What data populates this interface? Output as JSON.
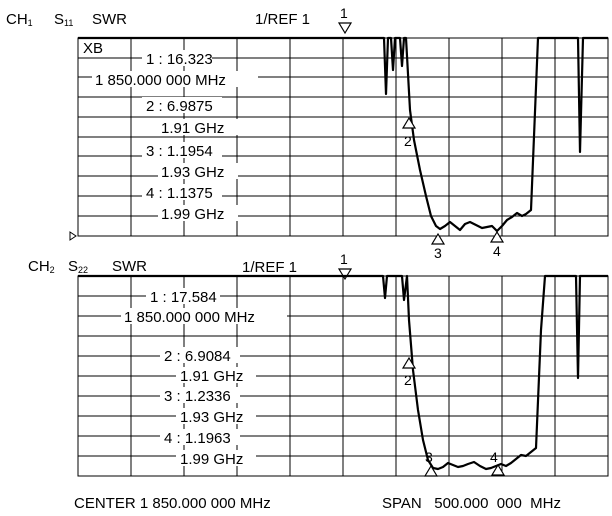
{
  "channels": [
    {
      "channel": "CH",
      "channel_num": "1",
      "param": "S",
      "param_sub": "11",
      "format": "SWR",
      "scale": "1/REF 1",
      "ref_marker": "1",
      "box_label": "XB",
      "markers": [
        {
          "label": "1 : 16.323",
          "freq": "1 850.000 000 MHz"
        },
        {
          "label": "2 : 6.9875",
          "freq": "1.91 GHz"
        },
        {
          "label": "3 : 1.1954",
          "freq": "1.93 GHz"
        },
        {
          "label": "4 : 1.1375",
          "freq": "1.99 GHz"
        }
      ],
      "trace_markers": [
        "2",
        "3",
        "4"
      ]
    },
    {
      "channel": "CH",
      "channel_num": "2",
      "param": "S",
      "param_sub": "22",
      "format": "SWR",
      "scale": "1/REF 1",
      "ref_marker": "1",
      "markers": [
        {
          "label": "1 : 17.584",
          "freq": "1 850.000 000 MHz"
        },
        {
          "label": "2 : 6.9084",
          "freq": "1.91 GHz"
        },
        {
          "label": "3 : 1.2336",
          "freq": "1.93 GHz"
        },
        {
          "label": "4 : 1.1963",
          "freq": "1.99 GHz"
        }
      ],
      "trace_markers": [
        "2",
        "3",
        "4"
      ]
    }
  ],
  "footer": {
    "center": "CENTER 1 850.000 000 MHz",
    "span": "SPAN   500.000  000  MHz"
  }
}
